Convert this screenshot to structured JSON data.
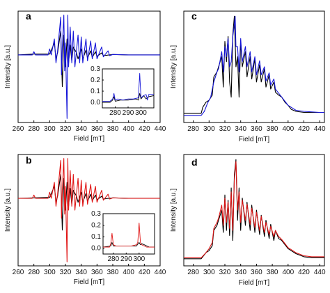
{
  "colors": {
    "blue": "#1515d8",
    "red": "#e01515",
    "black": "#000000"
  },
  "chart_data": [
    {
      "panel": "a",
      "type": "line",
      "xlabel": "Field [mT]",
      "ylabel": "Intensity [a.u.]",
      "xlim": [
        260,
        440
      ],
      "xticks": [
        "260",
        "280",
        "300",
        "320",
        "340",
        "360",
        "380",
        "400",
        "420",
        "440"
      ],
      "series": [
        {
          "color": "#000000",
          "x": [
            260,
            280,
            300,
            306,
            308,
            310,
            314,
            316,
            318,
            320,
            322,
            324,
            326,
            328,
            330,
            334,
            336,
            340,
            342,
            346,
            348,
            352,
            354,
            358,
            360,
            366,
            368,
            380,
            400,
            420,
            440
          ],
          "y": [
            0,
            0.02,
            0.02,
            0.3,
            -0.1,
            0.05,
            0.6,
            -0.8,
            0.5,
            -0.3,
            0.4,
            -0.2,
            0.25,
            -0.15,
            0.2,
            0.05,
            -0.1,
            0.15,
            -0.1,
            0.12,
            -0.08,
            0.1,
            -0.06,
            0.08,
            -0.04,
            0.05,
            -0.02,
            0.01,
            0,
            0,
            0
          ]
        },
        {
          "color": "#1515d8",
          "x": [
            260,
            278,
            280,
            282,
            298,
            300,
            302,
            306,
            308,
            310,
            314,
            315,
            316,
            318,
            319,
            320,
            322,
            323,
            324,
            326,
            328,
            330,
            332,
            336,
            338,
            340,
            342,
            346,
            348,
            352,
            354,
            358,
            360,
            366,
            368,
            374,
            376,
            380,
            400,
            420,
            440
          ],
          "y": [
            0,
            0,
            0.08,
            0,
            0,
            0.15,
            0,
            0.4,
            -0.2,
            0.1,
            0.95,
            -0.5,
            0.2,
            1.0,
            -0.4,
            0.3,
            -1.6,
            1.0,
            -0.3,
            0.7,
            -0.2,
            0.6,
            -0.3,
            0.5,
            -0.2,
            0.45,
            -0.2,
            0.4,
            -0.15,
            0.35,
            -0.1,
            0.3,
            -0.1,
            0.2,
            -0.05,
            0.1,
            -0.02,
            0.01,
            0,
            0,
            0
          ]
        }
      ],
      "inset": {
        "xlim": [
          270,
          310
        ],
        "ylim": [
          -0.05,
          0.3
        ],
        "xticks": [
          "280",
          "290",
          "300"
        ],
        "yticks": [
          "0.0",
          "0.1",
          "0.2",
          "0.3"
        ],
        "series": [
          {
            "color": "#000000",
            "x": [
              270,
              276,
              278,
              279,
              280,
              284,
              290,
              296,
              298,
              299,
              300,
              302,
              304,
              306,
              310
            ],
            "y": [
              0,
              0,
              0.02,
              0.05,
              0.01,
              0.02,
              0.02,
              0.03,
              0.02,
              0.08,
              0.03,
              0.06,
              0.03,
              0.05,
              0.06
            ]
          },
          {
            "color": "#1515d8",
            "x": [
              270,
              276,
              278,
              279,
              280,
              282,
              286,
              290,
              294,
              298,
              299,
              300,
              301,
              302,
              304,
              305,
              306,
              310
            ],
            "y": [
              0.01,
              0.01,
              0.03,
              0.08,
              0.02,
              0.03,
              0.02,
              0.03,
              0.03,
              0.04,
              0.26,
              0.04,
              0.05,
              0.06,
              0.07,
              0.02,
              0.07,
              0.07
            ]
          }
        ]
      }
    },
    {
      "panel": "b",
      "type": "line",
      "xlabel": "Field [mT]",
      "ylabel": "Intensity [a.u.]",
      "xlim": [
        260,
        440
      ],
      "xticks": [
        "260",
        "280",
        "300",
        "320",
        "340",
        "360",
        "380",
        "400",
        "420",
        "440"
      ],
      "series": [
        {
          "color": "#000000",
          "x": [
            260,
            300,
            306,
            308,
            310,
            314,
            316,
            318,
            320,
            322,
            324,
            326,
            328,
            330,
            334,
            336,
            340,
            342,
            346,
            348,
            352,
            354,
            358,
            360,
            366,
            368,
            380,
            400,
            420,
            440
          ],
          "y": [
            0,
            0.02,
            0.3,
            -0.1,
            0.05,
            0.6,
            -0.8,
            0.5,
            -0.3,
            0.4,
            -0.2,
            0.25,
            -0.15,
            0.2,
            0.05,
            -0.1,
            0.15,
            -0.1,
            0.12,
            -0.08,
            0.1,
            -0.06,
            0.08,
            -0.04,
            0.05,
            -0.02,
            0.01,
            0,
            0,
            0
          ]
        },
        {
          "color": "#e01515",
          "x": [
            260,
            278,
            280,
            282,
            298,
            300,
            302,
            306,
            308,
            310,
            314,
            315,
            316,
            318,
            319,
            320,
            322,
            323,
            324,
            326,
            328,
            330,
            332,
            336,
            338,
            340,
            342,
            346,
            348,
            352,
            354,
            358,
            360,
            366,
            368,
            374,
            376,
            380,
            400,
            420,
            440
          ],
          "y": [
            0,
            0,
            0.08,
            0,
            0,
            0.15,
            0,
            0.4,
            -0.2,
            0.1,
            0.95,
            -0.5,
            0.2,
            1.0,
            -0.4,
            0.3,
            -1.6,
            1.0,
            -0.3,
            0.7,
            -0.2,
            0.6,
            -0.3,
            0.5,
            -0.2,
            0.45,
            -0.2,
            0.4,
            -0.15,
            0.35,
            -0.1,
            0.3,
            -0.1,
            0.2,
            -0.05,
            0.1,
            -0.02,
            0.01,
            0,
            0,
            0
          ]
        }
      ],
      "inset": {
        "xlim": [
          272,
          312
        ],
        "ylim": [
          -0.05,
          0.3
        ],
        "xticks": [
          "280",
          "290",
          "300"
        ],
        "yticks": [
          "0.0",
          "0.1",
          "0.2",
          "0.3"
        ],
        "series": [
          {
            "color": "#000000",
            "x": [
              272,
              278,
              279,
              280,
              282,
              290,
              298,
              300,
              301,
              302,
              304,
              306,
              308,
              312
            ],
            "y": [
              0.01,
              0.02,
              0.05,
              0.02,
              0.02,
              0.02,
              0.02,
              0.05,
              0.03,
              0.04,
              0.03,
              0.02,
              0.01,
              0.01
            ]
          },
          {
            "color": "#e01515",
            "x": [
              272,
              277,
              278,
              279,
              280,
              282,
              286,
              290,
              294,
              298,
              299,
              300,
              301,
              302,
              304,
              306,
              308,
              312
            ],
            "y": [
              0.01,
              0.01,
              0.04,
              0.13,
              0.03,
              0.02,
              0.02,
              0.02,
              0.02,
              0.03,
              0.05,
              0.22,
              0.05,
              0.03,
              0.02,
              0.01,
              0.01,
              0.01
            ]
          }
        ]
      }
    },
    {
      "panel": "c",
      "type": "line",
      "xlabel": "Field [mT]",
      "ylabel": "Intensity [a.u.]",
      "xlim": [
        268,
        446
      ],
      "xticks": [
        "280",
        "300",
        "320",
        "340",
        "360",
        "380",
        "400",
        "420",
        "440"
      ],
      "series": [
        {
          "color": "#000000",
          "x": [
            268,
            290,
            292,
            296,
            300,
            304,
            306,
            310,
            312,
            316,
            318,
            320,
            322,
            324,
            326,
            328,
            330,
            332,
            334,
            336,
            338,
            340,
            342,
            346,
            348,
            352,
            354,
            358,
            360,
            364,
            366,
            370,
            372,
            376,
            378,
            382,
            384,
            388,
            392,
            396,
            400,
            404,
            410,
            420,
            440,
            446
          ],
          "y": [
            0.04,
            0.04,
            0.1,
            0.15,
            0.17,
            0.22,
            0.4,
            0.45,
            0.5,
            0.6,
            0.3,
            0.75,
            0.55,
            0.8,
            0.35,
            0.2,
            0.82,
            1.0,
            0.5,
            0.6,
            0.2,
            0.75,
            0.5,
            0.65,
            0.4,
            0.6,
            0.38,
            0.58,
            0.35,
            0.52,
            0.35,
            0.48,
            0.3,
            0.42,
            0.28,
            0.35,
            0.25,
            0.22,
            0.2,
            0.15,
            0.12,
            0.08,
            0.06,
            0.05,
            0.05,
            0.05
          ]
        },
        {
          "color": "#1515d8",
          "x": [
            268,
            290,
            294,
            298,
            302,
            306,
            310,
            312,
            316,
            318,
            320,
            322,
            324,
            326,
            328,
            330,
            332,
            333,
            334,
            336,
            338,
            340,
            342,
            346,
            348,
            352,
            354,
            358,
            360,
            364,
            366,
            370,
            372,
            376,
            378,
            382,
            384,
            388,
            392,
            396,
            400,
            404,
            410,
            420,
            440,
            446
          ],
          "y": [
            0.02,
            0.02,
            0.06,
            0.14,
            0.2,
            0.35,
            0.45,
            0.48,
            0.65,
            0.45,
            0.7,
            0.6,
            0.78,
            0.5,
            0.55,
            0.8,
            0.92,
            1.0,
            0.7,
            0.7,
            0.45,
            0.78,
            0.55,
            0.7,
            0.5,
            0.65,
            0.45,
            0.6,
            0.42,
            0.56,
            0.42,
            0.5,
            0.36,
            0.44,
            0.32,
            0.38,
            0.28,
            0.24,
            0.2,
            0.16,
            0.12,
            0.1,
            0.07,
            0.06,
            0.05,
            0.05
          ]
        }
      ]
    },
    {
      "panel": "d",
      "type": "line",
      "xlabel": "Field [mT]",
      "ylabel": "Intensity [a.u.]",
      "xlim": [
        268,
        446
      ],
      "xticks": [
        "280",
        "300",
        "320",
        "340",
        "360",
        "380",
        "400",
        "420",
        "440"
      ],
      "series": [
        {
          "color": "#000000",
          "x": [
            268,
            290,
            296,
            300,
            304,
            306,
            310,
            312,
            316,
            318,
            320,
            322,
            324,
            326,
            328,
            330,
            332,
            334,
            336,
            338,
            340,
            342,
            346,
            348,
            352,
            354,
            358,
            360,
            364,
            366,
            370,
            372,
            376,
            378,
            382,
            384,
            388,
            392,
            396,
            400,
            404,
            410,
            420,
            430,
            440,
            446
          ],
          "y": [
            0.02,
            0.02,
            0.08,
            0.1,
            0.15,
            0.3,
            0.35,
            0.4,
            0.5,
            0.28,
            0.65,
            0.3,
            0.6,
            0.25,
            0.72,
            0.2,
            0.85,
            1.0,
            0.4,
            0.72,
            0.3,
            0.62,
            0.35,
            0.58,
            0.3,
            0.55,
            0.28,
            0.5,
            0.26,
            0.45,
            0.24,
            0.4,
            0.22,
            0.36,
            0.2,
            0.3,
            0.22,
            0.2,
            0.16,
            0.12,
            0.1,
            0.07,
            0.04,
            0.03,
            0.03,
            0.03
          ]
        },
        {
          "color": "#e01515",
          "x": [
            268,
            290,
            296,
            300,
            304,
            306,
            310,
            312,
            316,
            318,
            320,
            322,
            324,
            326,
            328,
            330,
            332,
            334,
            336,
            338,
            340,
            342,
            346,
            348,
            352,
            354,
            358,
            360,
            364,
            366,
            370,
            372,
            376,
            378,
            382,
            384,
            388,
            392,
            396,
            400,
            404,
            410,
            420,
            430,
            440,
            446
          ],
          "y": [
            0.03,
            0.03,
            0.08,
            0.12,
            0.18,
            0.32,
            0.38,
            0.42,
            0.55,
            0.35,
            0.62,
            0.38,
            0.58,
            0.32,
            0.68,
            0.3,
            0.8,
            0.98,
            0.5,
            0.68,
            0.38,
            0.6,
            0.4,
            0.56,
            0.36,
            0.52,
            0.33,
            0.48,
            0.3,
            0.44,
            0.28,
            0.38,
            0.26,
            0.34,
            0.24,
            0.3,
            0.24,
            0.21,
            0.17,
            0.13,
            0.11,
            0.08,
            0.05,
            0.04,
            0.04,
            0.04
          ]
        }
      ]
    }
  ]
}
